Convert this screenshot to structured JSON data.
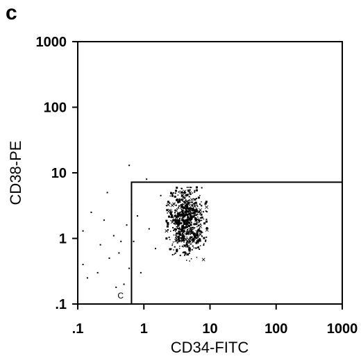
{
  "panel_label": "c",
  "chart_data": {
    "type": "scatter",
    "title": "",
    "xlabel": "CD34-FITC",
    "ylabel": "CD38-PE",
    "x_scale": "log",
    "y_scale": "log",
    "xlim": [
      0.1,
      1000
    ],
    "ylim": [
      0.1,
      1000
    ],
    "x_ticks": [
      0.1,
      1,
      10,
      100,
      1000
    ],
    "y_ticks": [
      0.1,
      1,
      10,
      100,
      1000
    ],
    "x_tick_labels": [
      ".1",
      "1",
      "10",
      "100",
      "1000"
    ],
    "y_tick_labels": [
      ".1",
      "1",
      "10",
      "100",
      "1000"
    ],
    "grid": false,
    "gate": {
      "label": "C",
      "x_range": [
        0.65,
        1000
      ],
      "y_range": [
        0.1,
        7.2
      ]
    },
    "cluster": {
      "center": [
        4.5,
        1.8
      ],
      "approx_x_range": [
        2.2,
        9
      ],
      "approx_y_range": [
        0.15,
        6
      ]
    },
    "sparse_points": [
      [
        0.12,
        1.3
      ],
      [
        0.12,
        0.4
      ],
      [
        0.14,
        0.25
      ],
      [
        0.16,
        2.5
      ],
      [
        0.2,
        0.3
      ],
      [
        0.22,
        0.8
      ],
      [
        0.3,
        0.5
      ],
      [
        0.35,
        1.1
      ],
      [
        0.42,
        0.6
      ],
      [
        0.5,
        0.2
      ],
      [
        0.55,
        1.6
      ],
      [
        0.6,
        0.35
      ],
      [
        0.45,
        0.9
      ],
      [
        0.28,
        5
      ],
      [
        0.6,
        13
      ],
      [
        0.7,
        0.9
      ],
      [
        0.8,
        2.2
      ],
      [
        1.2,
        1.4
      ],
      [
        1.8,
        4.5
      ],
      [
        1.5,
        0.7
      ],
      [
        0.9,
        0.3
      ],
      [
        1.1,
        8
      ],
      [
        0.38,
        0.18
      ],
      [
        0.25,
        1.9
      ],
      [
        0.65,
        3.3
      ]
    ]
  }
}
